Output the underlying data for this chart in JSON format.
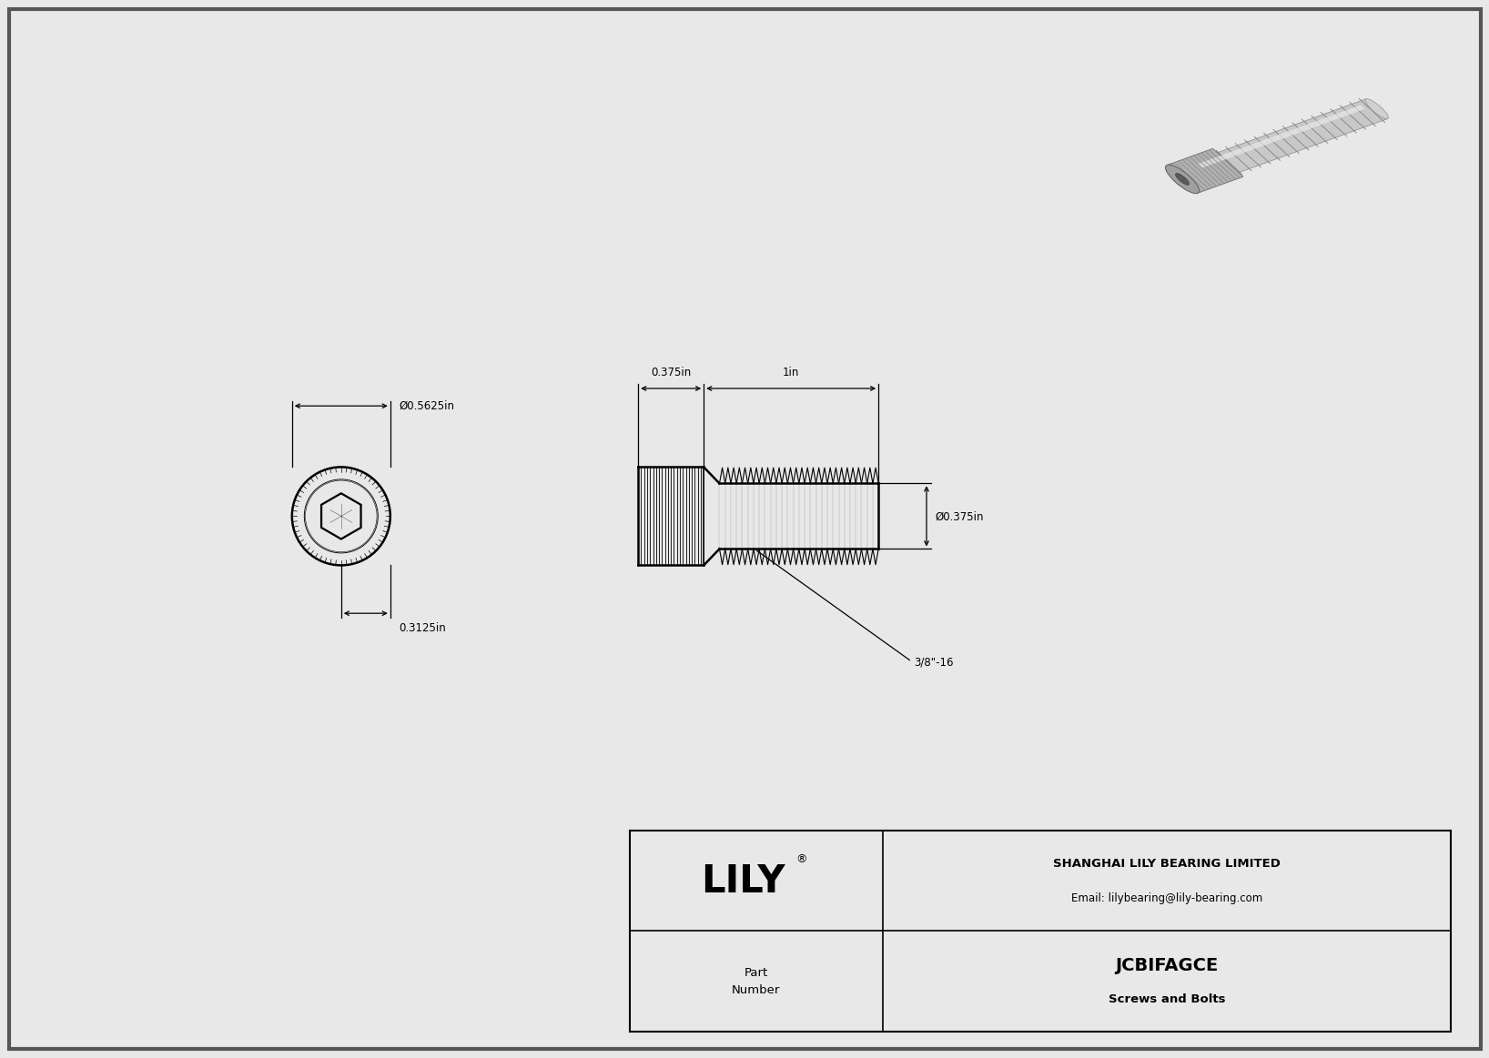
{
  "bg_color": "#e8e8e8",
  "drawing_bg": "#ffffff",
  "border_color": "#000000",
  "line_color": "#000000",
  "dim_color": "#000000",
  "title_company": "SHANGHAI LILY BEARING LIMITED",
  "title_email": "Email: lilybearing@lily-bearing.com",
  "part_label": "Part\nNumber",
  "part_number": "JCBIFAGCE",
  "part_category": "Screws and Bolts",
  "lily_text": "LILY",
  "dim_outer_dia": "Ø0.5625in",
  "dim_head_len": "0.3125in",
  "dim_shaft_len": "1in",
  "dim_head_width": "0.375in",
  "dim_shaft_dia": "Ø0.375in",
  "dim_thread": "3/8\"-16"
}
